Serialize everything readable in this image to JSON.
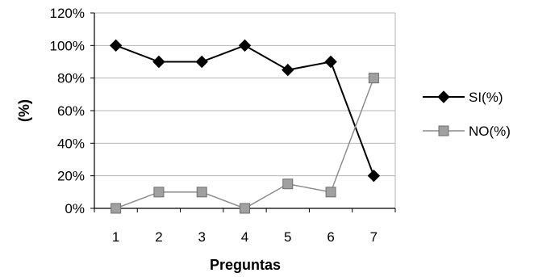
{
  "chart_data": {
    "type": "line",
    "categories": [
      "1",
      "2",
      "3",
      "4",
      "5",
      "6",
      "7"
    ],
    "xlabel": "Preguntas",
    "ylabel": "(%)",
    "ylim": [
      0,
      120
    ],
    "yticks": [
      "0%",
      "20%",
      "40%",
      "60%",
      "80%",
      "100%",
      "120%"
    ],
    "grid": true,
    "legend_position": "right",
    "series": [
      {
        "name": "SI(%)",
        "values": [
          100,
          90,
          90,
          100,
          85,
          90,
          20
        ],
        "color": "#000000",
        "marker": "diamond"
      },
      {
        "name": "NO(%)",
        "values": [
          0,
          10,
          10,
          0,
          15,
          10,
          80
        ],
        "color": "#8c8c8c",
        "marker": "square"
      }
    ]
  }
}
